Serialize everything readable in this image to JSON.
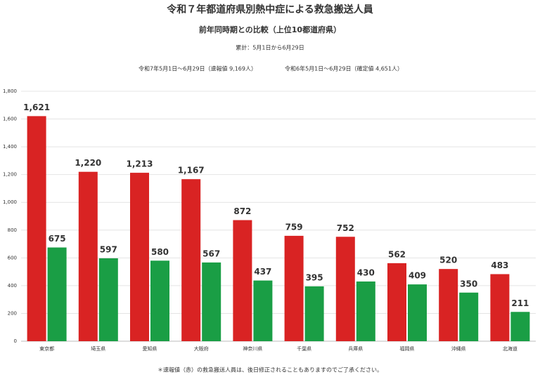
{
  "chart_data": {
    "type": "bar",
    "title": "令和７年都道府県別熱中症による救急搬送人員",
    "subtitle": "前年同時期との比較（上位10都道府県）",
    "period": "累計：5月1日から6月29日",
    "footnote": "＊速報値（赤）の救急搬送人員は、後日修正されることもありますのでご了承ください。",
    "categories": [
      "東京都",
      "埼玉県",
      "愛知県",
      "大阪府",
      "神奈川県",
      "千葉県",
      "兵庫県",
      "福岡県",
      "沖縄県",
      "北海道"
    ],
    "series": [
      {
        "name": "令和7年5月1日～6月29日（速報値 9,169人）",
        "color": "#d92323",
        "values": [
          1621,
          1220,
          1213,
          1167,
          872,
          759,
          752,
          562,
          520,
          483
        ],
        "value_labels": [
          "1,621",
          "1,220",
          "1,213",
          "1,167",
          "872",
          "759",
          "752",
          "562",
          "520",
          "483"
        ]
      },
      {
        "name": "令和6年5月1日～6月29日（確定値 4,651人）",
        "color": "#1a9e45",
        "values": [
          675,
          597,
          580,
          567,
          437,
          395,
          430,
          409,
          350,
          211
        ]
      }
    ],
    "ylim": [
      0,
      1800
    ],
    "yticks": [
      0,
      200,
      400,
      600,
      800,
      {
        "value": 1000,
        "label": "1,000"
      },
      {
        "value": 1200,
        "label": "1,200"
      },
      {
        "value": 1400,
        "label": "1,400"
      },
      {
        "value": 1600,
        "label": "1,600"
      },
      {
        "value": 1800,
        "label": "1,800"
      }
    ],
    "grid": true
  }
}
